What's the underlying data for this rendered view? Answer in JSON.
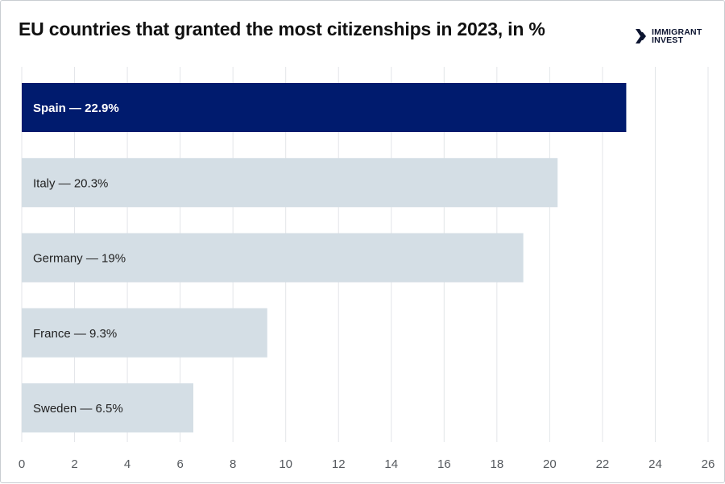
{
  "chart_data": {
    "type": "bar",
    "orientation": "horizontal",
    "title": "EU countries that granted the most citizenships in 2023, in %",
    "categories": [
      "Spain",
      "Italy",
      "Germany",
      "France",
      "Sweden"
    ],
    "values": [
      22.9,
      20.3,
      19,
      9.3,
      6.5
    ],
    "bar_labels": [
      "Spain — 22.9%",
      "Italy — 20.3%",
      "Germany — 19%",
      "France — 9.3%",
      "Sweden — 6.5%"
    ],
    "highlight_index": 0,
    "xlim": [
      0,
      26
    ],
    "xticks": [
      0,
      2,
      4,
      6,
      8,
      10,
      12,
      14,
      16,
      18,
      20,
      22,
      24,
      26
    ],
    "xlabel": "",
    "ylabel": "",
    "grid": true,
    "colors": {
      "highlight": "#001b6e",
      "bar": "#d4dee5",
      "grid": "#e3e6e9",
      "tick_text": "#55595e",
      "label_dark": "#222222",
      "label_light": "#ffffff"
    }
  },
  "brand": {
    "line1": "IMMIGRANT",
    "line2": "INVEST"
  }
}
